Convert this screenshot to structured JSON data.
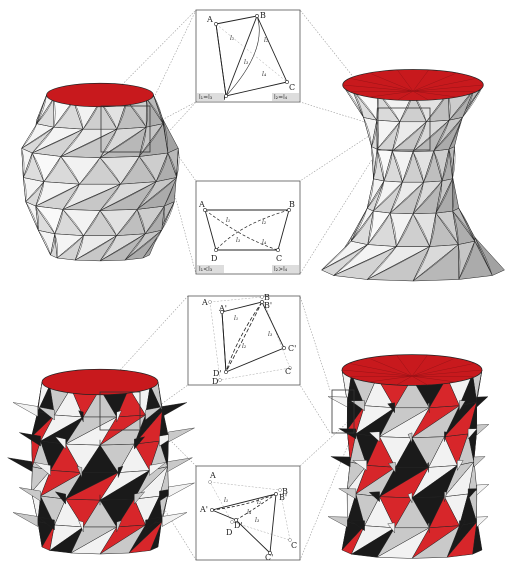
{
  "colors": {
    "face_white": "#f2f2f2",
    "face_grey": "#c9c9c9",
    "face_dark": "#1a1a1a",
    "face_red": "#d7262a",
    "face_red_dark": "#8e1014",
    "rim_red": "#c8191d",
    "line": "#222222",
    "leader": "#9a9a9a"
  },
  "insets": [
    {
      "name": "inset-1-planar-quad",
      "points": {
        "A": "A",
        "B": "B",
        "C": "C",
        "D": "D"
      },
      "lengths": [
        "l₁",
        "l₂",
        "l₃",
        "l₄"
      ],
      "tags": [
        "l₁=l₃",
        "l₂=l₄"
      ]
    },
    {
      "name": "inset-2-folded-quad",
      "points": {
        "A": "A",
        "B": "B",
        "C": "C",
        "D": "D"
      },
      "lengths": [
        "l₁",
        "l₂",
        "l₃",
        "l₄"
      ],
      "tags": [
        "l₁<l₃",
        "l₂>l₄"
      ]
    },
    {
      "name": "inset-3-spike-quad",
      "points": {
        "A": "A",
        "B": "B",
        "C": "C",
        "D": "D",
        "A2": "A'",
        "B2": "B'",
        "C2": "C'",
        "D2": "D'"
      },
      "lengths": [
        "l₁",
        "l₂",
        "l₃"
      ]
    },
    {
      "name": "inset-4-spike-quad",
      "points": {
        "A": "A",
        "B": "B",
        "C": "C",
        "D": "D",
        "A2": "A'",
        "B2": "B'",
        "C2": "C'",
        "D2": "D'"
      },
      "lengths": [
        "l₁",
        "l₂",
        "l₃",
        "l₄"
      ]
    }
  ]
}
